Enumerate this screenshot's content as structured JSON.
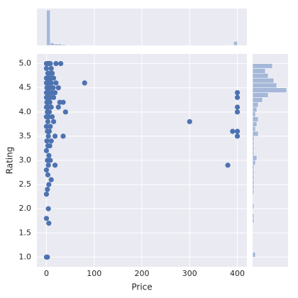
{
  "chart_data": [
    {
      "type": "scatter",
      "xlabel": "Price",
      "ylabel": "Rating",
      "color": "#4c72b0",
      "grid": true,
      "xlim": [
        -20,
        420
      ],
      "xticks": [
        0,
        100,
        200,
        300,
        400
      ],
      "ylim": [
        0.8,
        5.2
      ],
      "yticks": [
        {
          "value": 1,
          "label": "1.0"
        },
        {
          "value": 1.5,
          "label": "1.5"
        },
        {
          "value": 2,
          "label": "2.0"
        },
        {
          "value": 2.5,
          "label": "2.5"
        },
        {
          "value": 3,
          "label": "3.0"
        },
        {
          "value": 3.5,
          "label": "3.5"
        },
        {
          "value": 4,
          "label": "4.0"
        },
        {
          "value": 4.5,
          "label": "4.5"
        },
        {
          "value": 5,
          "label": "5.0"
        }
      ],
      "x": [
        0,
        2,
        5,
        8,
        20,
        30,
        10,
        0,
        3,
        6,
        12,
        0,
        4,
        9,
        15,
        0,
        2,
        5,
        10,
        20,
        80,
        1,
        4,
        8,
        14,
        25,
        0,
        3,
        6,
        12,
        18,
        400,
        0,
        2,
        5,
        9,
        15,
        400,
        1,
        4,
        7,
        28,
        35,
        0,
        3,
        10,
        25,
        400,
        2,
        6,
        40,
        400,
        0,
        5,
        12,
        3,
        15,
        300,
        0,
        8,
        2,
        6,
        390,
        400,
        4,
        18,
        35,
        400,
        1,
        10,
        3,
        7,
        0,
        5,
        2,
        8,
        4,
        18,
        380,
        0,
        3,
        10,
        5,
        2,
        0,
        4,
        0,
        5,
        0,
        2
      ],
      "y": [
        5.0,
        5.0,
        5.0,
        5.0,
        5.0,
        5.0,
        4.9,
        4.9,
        4.8,
        4.8,
        4.8,
        4.7,
        4.7,
        4.7,
        4.7,
        4.6,
        4.6,
        4.6,
        4.6,
        4.6,
        4.6,
        4.5,
        4.5,
        4.5,
        4.5,
        4.5,
        4.4,
        4.4,
        4.4,
        4.4,
        4.4,
        4.4,
        4.3,
        4.3,
        4.3,
        4.3,
        4.3,
        4.3,
        4.2,
        4.2,
        4.2,
        4.2,
        4.2,
        4.1,
        4.1,
        4.1,
        4.1,
        4.1,
        4.0,
        4.0,
        4.0,
        4.0,
        3.9,
        3.9,
        3.9,
        3.8,
        3.8,
        3.8,
        3.7,
        3.7,
        3.6,
        3.6,
        3.6,
        3.6,
        3.5,
        3.5,
        3.5,
        3.5,
        3.4,
        3.4,
        3.3,
        3.3,
        3.2,
        3.1,
        3.0,
        3.0,
        2.9,
        2.9,
        2.9,
        2.8,
        2.7,
        2.6,
        2.5,
        2.4,
        2.3,
        2.0,
        1.8,
        1.7,
        1.0,
        1.0
      ]
    },
    {
      "type": "histogram",
      "orientation": "vertical",
      "color": "#a5b8d8",
      "grid": true,
      "bins": [
        0,
        8,
        16,
        24,
        32,
        40,
        48,
        56,
        64,
        72,
        80,
        88,
        96,
        104,
        112,
        120,
        128,
        136,
        144,
        152,
        160,
        168,
        176,
        184,
        192,
        200,
        208,
        216,
        224,
        232,
        240,
        248,
        256,
        264,
        272,
        280,
        288,
        296,
        304,
        312,
        320,
        328,
        336,
        344,
        352,
        360,
        368,
        376,
        384,
        392,
        400
      ],
      "values": [
        70,
        5,
        3,
        3,
        2,
        1,
        0,
        0,
        0,
        0,
        1,
        0,
        0,
        0,
        0,
        0,
        0,
        0,
        0,
        0,
        0,
        0,
        0,
        0,
        0,
        0,
        0,
        0,
        0,
        0,
        0,
        0,
        0,
        0,
        0,
        0,
        0,
        1,
        0,
        0,
        0,
        0,
        0,
        0,
        0,
        0,
        0,
        1,
        1,
        8
      ],
      "xlim": [
        -20,
        420
      ],
      "ylim": [
        0,
        73
      ]
    },
    {
      "type": "histogram",
      "orientation": "horizontal",
      "color": "#a5b8d8",
      "grid": true,
      "bins": [
        1.0,
        1.1,
        1.2,
        1.3,
        1.4,
        1.5,
        1.6,
        1.7,
        1.8,
        1.9,
        2.0,
        2.1,
        2.2,
        2.3,
        2.4,
        2.5,
        2.6,
        2.7,
        2.8,
        2.9,
        3.0,
        3.1,
        3.2,
        3.3,
        3.4,
        3.5,
        3.6,
        3.7,
        3.8,
        3.9,
        4.0,
        4.1,
        4.2,
        4.3,
        4.4,
        4.5,
        4.6,
        4.7,
        4.8,
        4.9,
        5.0
      ],
      "values": [
        2,
        0,
        0,
        0,
        0,
        0,
        0,
        1,
        1,
        0,
        1,
        0,
        0,
        1,
        1,
        1,
        1,
        1,
        1,
        2,
        3,
        1,
        1,
        1,
        1,
        4,
        2,
        3,
        4,
        2,
        3,
        4,
        7,
        11,
        24,
        17,
        15,
        11,
        9,
        14
      ],
      "ylim": [
        0.8,
        5.2
      ],
      "xlim": [
        0,
        25
      ]
    }
  ]
}
